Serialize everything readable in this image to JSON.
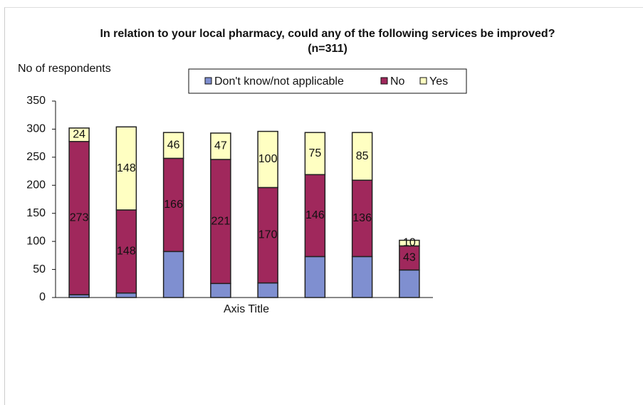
{
  "chart_data": {
    "type": "stacked_bar",
    "title": "In relation to your local pharmacy, could any of the following services be improved? (n=311)",
    "y_label": "No of respondents",
    "x_label": "Axis Title",
    "categories": [
      null,
      null,
      null,
      null,
      null,
      null,
      null,
      null
    ],
    "series": [
      {
        "name": "Don't know/not applicable",
        "color": "#7f8fd0",
        "values": [
          5,
          8,
          82,
          25,
          26,
          73,
          73,
          49
        ],
        "data_labels": false
      },
      {
        "name": "No",
        "color": "#a0285c",
        "values": [
          273,
          148,
          166,
          221,
          170,
          146,
          136,
          43
        ],
        "data_labels": true
      },
      {
        "name": "Yes",
        "color": "#ffffc2",
        "values": [
          24,
          148,
          46,
          47,
          100,
          75,
          85,
          10
        ],
        "data_labels": true
      }
    ],
    "ylim": [
      0,
      350
    ],
    "yticks": [
      0,
      50,
      100,
      150,
      200,
      250,
      300,
      350
    ],
    "grid": false,
    "legend": "top"
  }
}
